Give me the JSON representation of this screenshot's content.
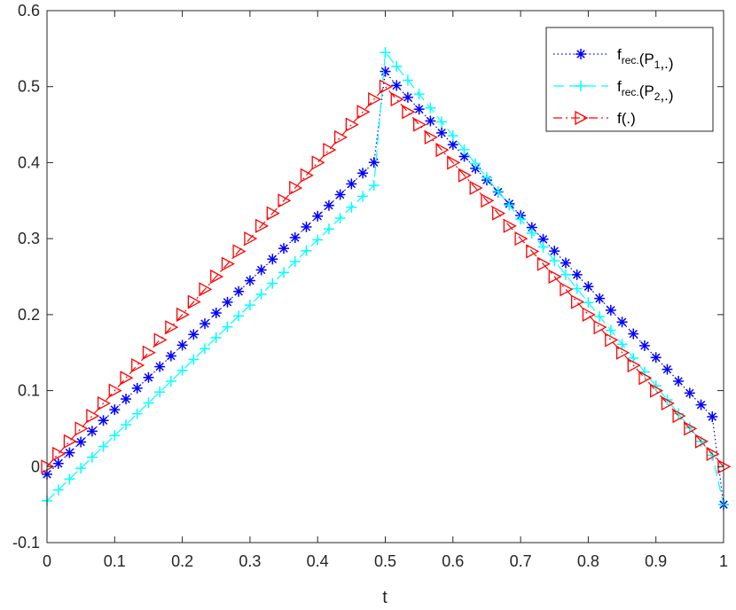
{
  "chart_data": {
    "type": "line",
    "xlabel": "t",
    "ylabel": "",
    "title": "",
    "xlim": [
      0,
      1
    ],
    "ylim": [
      -0.1,
      0.6
    ],
    "xticks": [
      "0",
      "0.1",
      "0.2",
      "0.3",
      "0.4",
      "0.5",
      "0.6",
      "0.7",
      "0.8",
      "0.9",
      "1"
    ],
    "yticks": [
      "-0.1",
      "0",
      "0.1",
      "0.2",
      "0.3",
      "0.4",
      "0.5",
      "0.6"
    ],
    "grid": false,
    "legend_position": "top-right",
    "x": [
      0,
      0.0167,
      0.0333,
      0.05,
      0.0667,
      0.0833,
      0.1,
      0.1167,
      0.1333,
      0.15,
      0.1667,
      0.1833,
      0.2,
      0.2167,
      0.2333,
      0.25,
      0.2667,
      0.2833,
      0.3,
      0.3167,
      0.3333,
      0.35,
      0.3667,
      0.3833,
      0.4,
      0.4167,
      0.4333,
      0.45,
      0.4667,
      0.4833,
      0.5,
      0.5167,
      0.5333,
      0.55,
      0.5667,
      0.5833,
      0.6,
      0.6167,
      0.6333,
      0.65,
      0.6667,
      0.6833,
      0.7,
      0.7167,
      0.7333,
      0.75,
      0.7667,
      0.7833,
      0.8,
      0.8167,
      0.8333,
      0.85,
      0.8667,
      0.8833,
      0.9,
      0.9167,
      0.9333,
      0.95,
      0.9667,
      0.9833,
      1
    ],
    "series": [
      {
        "name_main": "f",
        "name_sub": "rec.",
        "name_mid": "(P",
        "name_sub2": "1",
        "name_end": ",.)",
        "color": "#0000ff",
        "line_style": "dotted",
        "marker": "asterisk",
        "values": [
          -0.01,
          0.0041,
          0.0183,
          0.0324,
          0.0466,
          0.0607,
          0.0749,
          0.089,
          0.1032,
          0.1173,
          0.1315,
          0.1456,
          0.1598,
          0.1739,
          0.1881,
          0.2022,
          0.2164,
          0.2305,
          0.2447,
          0.2588,
          0.273,
          0.2871,
          0.3013,
          0.3154,
          0.3296,
          0.3437,
          0.3579,
          0.372,
          0.3862,
          0.4003,
          0.52,
          0.5015,
          0.4859,
          0.4703,
          0.4548,
          0.4392,
          0.4237,
          0.4081,
          0.3925,
          0.377,
          0.3614,
          0.3458,
          0.3303,
          0.3147,
          0.2992,
          0.2836,
          0.268,
          0.2525,
          0.2369,
          0.2213,
          0.2058,
          0.1902,
          0.1747,
          0.1591,
          0.1435,
          0.128,
          0.1124,
          0.0968,
          0.0813,
          0.0657,
          -0.05
        ]
      },
      {
        "name_main": "f",
        "name_sub": "rec.",
        "name_mid": "(P",
        "name_sub2": "2",
        "name_end": ",.)",
        "color": "#00ffff",
        "line_style": "dashed",
        "marker": "plus",
        "values": [
          -0.045,
          -0.0307,
          -0.0164,
          -0.0021,
          0.0123,
          0.0266,
          0.0409,
          0.0552,
          0.0695,
          0.0838,
          0.0981,
          0.1124,
          0.1267,
          0.141,
          0.1553,
          0.1697,
          0.184,
          0.1983,
          0.2126,
          0.2269,
          0.2412,
          0.2555,
          0.2698,
          0.2841,
          0.2984,
          0.3127,
          0.327,
          0.3414,
          0.3557,
          0.37,
          0.545,
          0.5267,
          0.5084,
          0.4902,
          0.4719,
          0.4536,
          0.4353,
          0.417,
          0.3987,
          0.3805,
          0.3622,
          0.3439,
          0.3256,
          0.3073,
          0.289,
          0.2708,
          0.2525,
          0.2342,
          0.2159,
          0.1976,
          0.1793,
          0.161,
          0.1428,
          0.1245,
          0.1062,
          0.0879,
          0.0696,
          0.0513,
          0.0331,
          0.0148,
          -0.05
        ]
      },
      {
        "name_main": "f(.)",
        "name_sub": "",
        "name_mid": "",
        "name_sub2": "",
        "name_end": "",
        "color": "#ff0000",
        "line_style": "dashdot",
        "marker": "triangle-right",
        "values": [
          0,
          0.0167,
          0.0333,
          0.05,
          0.0667,
          0.0833,
          0.1,
          0.1167,
          0.1333,
          0.15,
          0.1667,
          0.1833,
          0.2,
          0.2167,
          0.2333,
          0.25,
          0.2667,
          0.2833,
          0.3,
          0.3167,
          0.3333,
          0.35,
          0.3667,
          0.3833,
          0.4,
          0.4167,
          0.4333,
          0.45,
          0.4667,
          0.4833,
          0.5,
          0.4833,
          0.4667,
          0.45,
          0.4333,
          0.4167,
          0.4,
          0.3833,
          0.3667,
          0.35,
          0.3333,
          0.3167,
          0.3,
          0.2833,
          0.2667,
          0.25,
          0.2333,
          0.2167,
          0.2,
          0.1833,
          0.1667,
          0.15,
          0.1333,
          0.1167,
          0.1,
          0.0833,
          0.0667,
          0.05,
          0.0333,
          0.0167,
          0
        ]
      }
    ]
  }
}
